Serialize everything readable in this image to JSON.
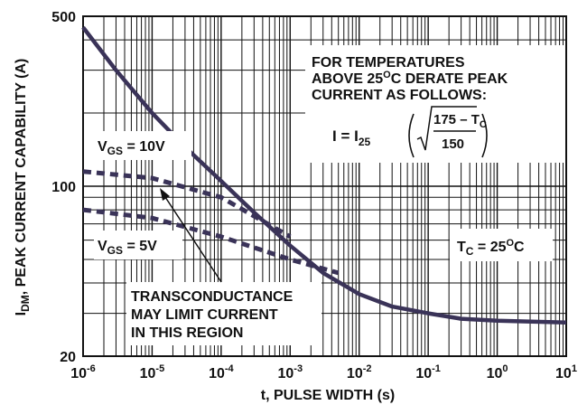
{
  "chart_data": {
    "type": "line",
    "title": "",
    "xlabel": "t, PULSE WIDTH (s)",
    "ylabel_main": "I",
    "ylabel_sub": "DM",
    "ylabel_rest": ", PEAK CURRENT CAPABILITY (A)",
    "x_scale": "log",
    "y_scale": "log",
    "xlim": [
      1e-06,
      10
    ],
    "ylim": [
      20,
      500
    ],
    "y_ticks": [
      {
        "value": 500,
        "label": "500"
      },
      {
        "value": 100,
        "label": "100"
      },
      {
        "value": 20,
        "label": "20"
      }
    ],
    "x_ticks": [
      {
        "value": 1e-06,
        "base": "10",
        "exp": "-6"
      },
      {
        "value": 1e-05,
        "base": "10",
        "exp": "-5"
      },
      {
        "value": 0.0001,
        "base": "10",
        "exp": "-4"
      },
      {
        "value": 0.001,
        "base": "10",
        "exp": "-3"
      },
      {
        "value": 0.01,
        "base": "10",
        "exp": "-2"
      },
      {
        "value": 0.1,
        "base": "10",
        "exp": "-1"
      },
      {
        "value": 1,
        "base": "10",
        "exp": "0"
      },
      {
        "value": 10,
        "base": "10",
        "exp": "1"
      }
    ],
    "grid": true,
    "series": [
      {
        "style": "solid",
        "points": [
          [
            1e-06,
            450
          ],
          [
            3e-06,
            300
          ],
          [
            1e-05,
            200
          ],
          [
            3e-05,
            145
          ],
          [
            0.0001,
            105
          ],
          [
            0.0003,
            78
          ],
          [
            0.001,
            57
          ],
          [
            0.003,
            44
          ],
          [
            0.01,
            36
          ],
          [
            0.03,
            32
          ],
          [
            0.1,
            30
          ],
          [
            0.3,
            28.5
          ],
          [
            1,
            28
          ],
          [
            10,
            27.5
          ]
        ]
      },
      {
        "style": "dashed",
        "points": [
          [
            1e-06,
            115
          ],
          [
            1e-05,
            108
          ],
          [
            0.0001,
            90
          ],
          [
            0.001,
            62
          ]
        ]
      },
      {
        "style": "dashed",
        "points": [
          [
            1e-06,
            80
          ],
          [
            1e-05,
            74
          ],
          [
            0.0001,
            62
          ],
          [
            0.001,
            50
          ],
          [
            0.005,
            44
          ]
        ]
      }
    ],
    "annotations": {
      "vgs10": {
        "pre": "V",
        "sub": "GS",
        "post": " = 10V"
      },
      "vgs5": {
        "pre": "V",
        "sub": "GS",
        "post": " = 5V"
      },
      "transconductance": [
        "TRANSCONDUCTANCE",
        "MAY LIMIT CURRENT",
        "IN THIS REGION"
      ],
      "temperature_note": [
        "FOR TEMPERATURES",
        "CURRENT AS FOLLOWS:"
      ],
      "temperature_line2": {
        "pre": "ABOVE 25",
        "sup": "O",
        "post": "C DERATE PEAK"
      },
      "tc": {
        "pre": "T",
        "sub": "C",
        "mid": " = 25",
        "sup": "O",
        "post": "C"
      },
      "formula": {
        "lhs": "I  =  I",
        "lhs_sub": "25",
        "numerator": "175 – T",
        "numerator_sub": "C",
        "denominator": "150"
      }
    }
  }
}
